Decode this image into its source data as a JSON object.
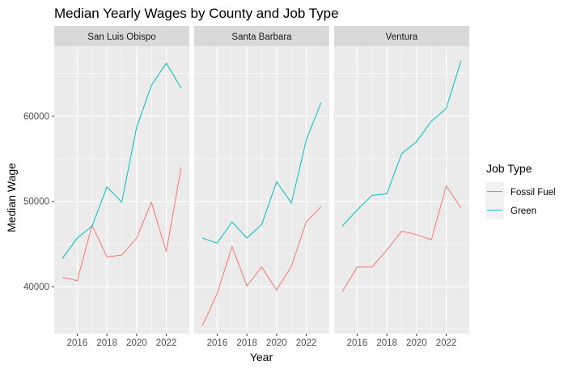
{
  "chart_data": {
    "type": "line",
    "title": "Median Yearly Wages by County and Job Type",
    "xlabel": "Year",
    "ylabel": "Median Wage",
    "x": [
      2015,
      2016,
      2017,
      2018,
      2019,
      2020,
      2021,
      2022,
      2023
    ],
    "xlim": [
      2014.45,
      2023.55
    ],
    "ylim": [
      34500,
      68200
    ],
    "x_ticks": [
      2016,
      2018,
      2020,
      2022
    ],
    "x_tick_labels": [
      "2016",
      "2018",
      "2020",
      "2022"
    ],
    "y_ticks": [
      40000,
      50000,
      60000
    ],
    "y_tick_labels": [
      "40000",
      "50000",
      "60000"
    ],
    "grid": true,
    "legend": {
      "title": "Job Type",
      "placement": "right",
      "entries": [
        "Fossil Fuel",
        "Green"
      ]
    },
    "colors": {
      "Fossil Fuel": "#F8766D",
      "Green": "#00BFC4"
    },
    "panels": [
      {
        "name": "San Luis Obispo",
        "series": [
          {
            "name": "Fossil Fuel",
            "values": [
              41100,
              40700,
              47200,
              43500,
              43700,
              45700,
              49900,
              44100,
              54000
            ]
          },
          {
            "name": "Green",
            "values": [
              43300,
              45700,
              47100,
              51700,
              49900,
              58700,
              63600,
              66200,
              63300
            ]
          }
        ]
      },
      {
        "name": "Santa Barbara",
        "series": [
          {
            "name": "Fossil Fuel",
            "values": [
              35400,
              39200,
              44700,
              40100,
              42300,
              39600,
              42400,
              47600,
              49400
            ]
          },
          {
            "name": "Green",
            "values": [
              45700,
              45100,
              47600,
              45700,
              47300,
              52300,
              49800,
              57200,
              61600
            ]
          }
        ]
      },
      {
        "name": "Ventura",
        "series": [
          {
            "name": "Fossil Fuel",
            "values": [
              39400,
              42300,
              42300,
              44300,
              46500,
              46100,
              45500,
              51800,
              49200
            ]
          },
          {
            "name": "Green",
            "values": [
              47100,
              49000,
              50700,
              50900,
              55600,
              57000,
              59400,
              60900,
              66500
            ]
          }
        ]
      }
    ]
  }
}
